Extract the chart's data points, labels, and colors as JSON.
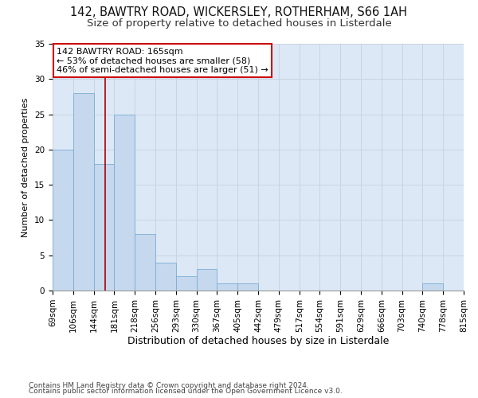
{
  "title1": "142, BAWTRY ROAD, WICKERSLEY, ROTHERHAM, S66 1AH",
  "title2": "Size of property relative to detached houses in Listerdale",
  "xlabel": "Distribution of detached houses by size in Listerdale",
  "ylabel": "Number of detached properties",
  "categories": [
    "69sqm",
    "106sqm",
    "144sqm",
    "181sqm",
    "218sqm",
    "256sqm",
    "293sqm",
    "330sqm",
    "367sqm",
    "405sqm",
    "442sqm",
    "479sqm",
    "517sqm",
    "554sqm",
    "591sqm",
    "629sqm",
    "666sqm",
    "703sqm",
    "740sqm",
    "778sqm",
    "815sqm"
  ],
  "bin_edges": [
    69,
    106,
    144,
    181,
    218,
    256,
    293,
    330,
    367,
    405,
    442,
    479,
    517,
    554,
    591,
    629,
    666,
    703,
    740,
    778,
    815
  ],
  "bar_values": [
    20,
    28,
    18,
    25,
    8,
    4,
    2,
    3,
    1,
    1,
    0,
    0,
    0,
    0,
    0,
    0,
    0,
    0,
    1,
    0
  ],
  "bar_color": "#c5d8ee",
  "bar_edge_color": "#7badd4",
  "red_line_x": 165,
  "annotation_line1": "142 BAWTRY ROAD: 165sqm",
  "annotation_line2": "← 53% of detached houses are smaller (58)",
  "annotation_line3": "46% of semi-detached houses are larger (51) →",
  "annotation_box_color": "#ffffff",
  "annotation_box_edge": "#cc0000",
  "red_line_color": "#aa0000",
  "ylim": [
    0,
    35
  ],
  "yticks": [
    0,
    5,
    10,
    15,
    20,
    25,
    30,
    35
  ],
  "grid_color": "#c8d4e0",
  "bg_color": "#dce8f5",
  "footer1": "Contains HM Land Registry data © Crown copyright and database right 2024.",
  "footer2": "Contains public sector information licensed under the Open Government Licence v3.0.",
  "title1_fontsize": 10.5,
  "title2_fontsize": 9.5,
  "xlabel_fontsize": 9,
  "ylabel_fontsize": 8,
  "tick_fontsize": 7.5,
  "annotation_fontsize": 8,
  "footer_fontsize": 6.5
}
